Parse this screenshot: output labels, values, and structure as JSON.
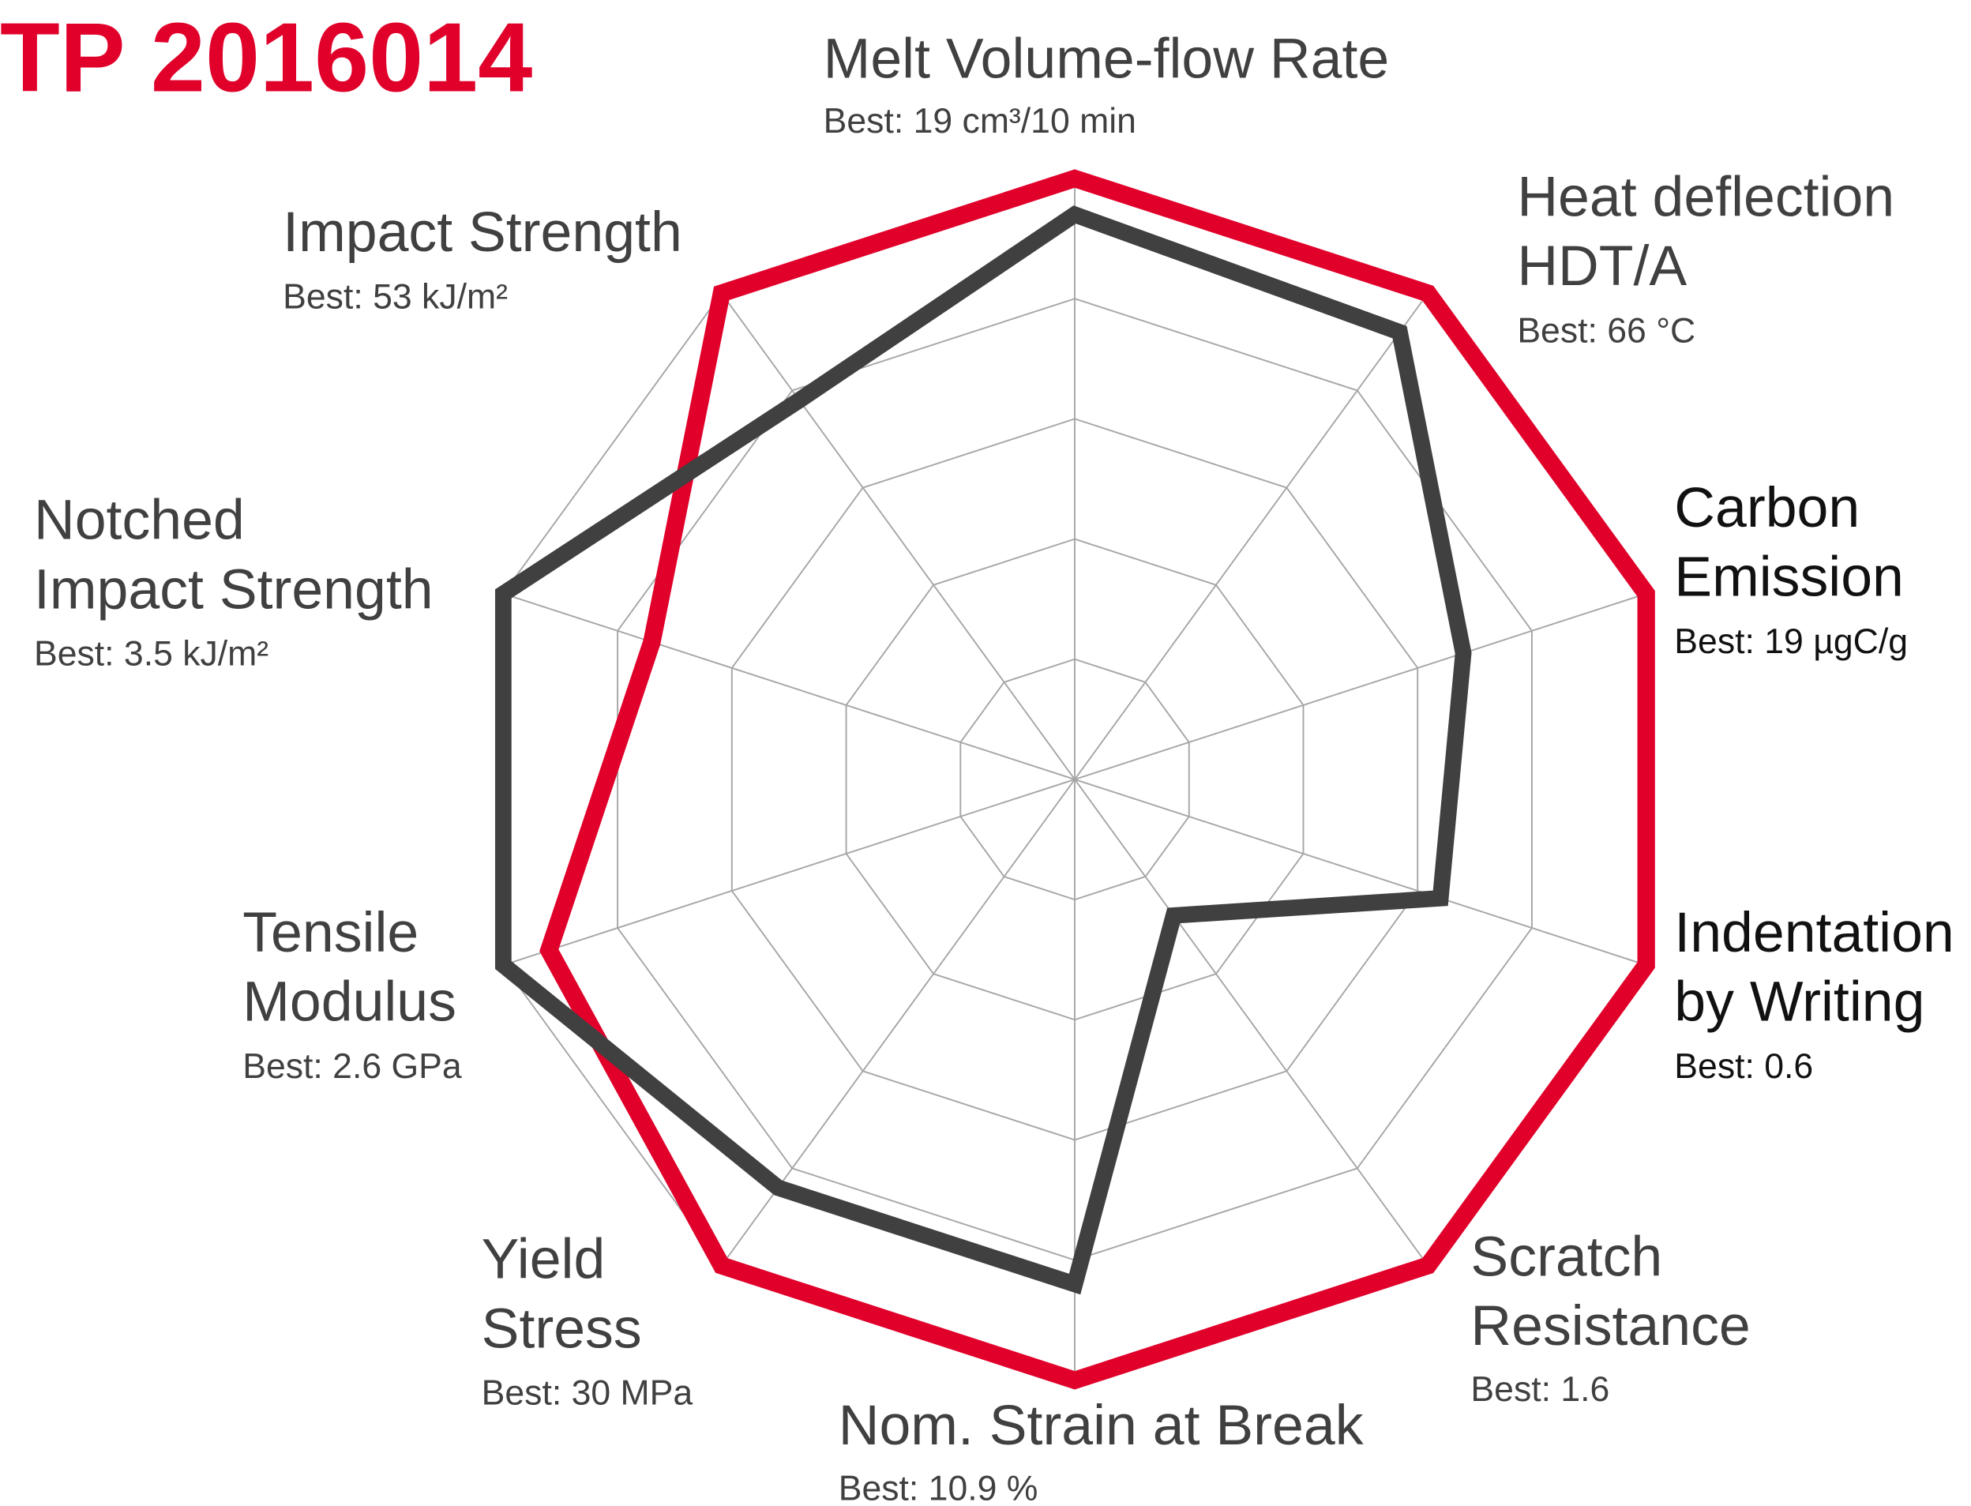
{
  "chart_data": {
    "type": "radar",
    "title": "TP 2016014",
    "title_color": "#e0002a",
    "categories": [
      [
        "Melt Volume-flow Rate"
      ],
      [
        "Heat deflection",
        "HDT/A"
      ],
      [
        "Carbon",
        "Emission"
      ],
      [
        "Indentation",
        "by Writing"
      ],
      [
        "Scratch",
        "Resistance"
      ],
      [
        "Nom. Strain at Break"
      ],
      [
        "Yield",
        "Stress"
      ],
      [
        "Tensile",
        "Modulus"
      ],
      [
        "Notched",
        "Impact Strength"
      ],
      [
        "Impact Strength"
      ]
    ],
    "best_labels": [
      "Best: 19 cm³/10 min",
      "Best: 66 °C",
      "Best: 19 µgC/g",
      "Best: 0.6",
      "Best: 1.6",
      "Best: 10.9 %",
      "Best: 30 MPa",
      "Best: 2.6 GPa",
      "Best: 3.5 kJ/m²",
      "Best: 53 kJ/m²"
    ],
    "series": [
      {
        "color": "#e0002a",
        "values": [
          5,
          5,
          5,
          5,
          5,
          5,
          5,
          4.6,
          3.7,
          5
        ]
      },
      {
        "color": "#404040",
        "values": [
          4.7,
          4.6,
          3.4,
          3.2,
          1.4,
          4.2,
          4.2,
          5,
          5,
          3.9
        ]
      }
    ],
    "ylim": [
      0,
      5
    ],
    "yticks": [
      0,
      1,
      2,
      3,
      4,
      5
    ],
    "grid": true
  }
}
